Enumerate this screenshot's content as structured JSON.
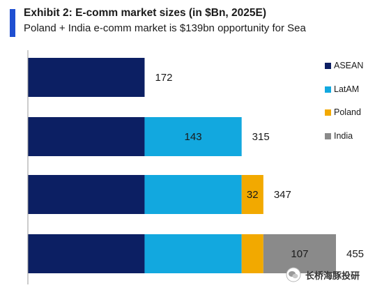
{
  "header": {
    "title": "Exhibit 2: E-comm market sizes (in $Bn, 2025E)",
    "subtitle": "Poland + India e-comm market is $139bn opportunity for Sea"
  },
  "colors": {
    "accent": "#1f4fd1",
    "ASEAN": "#0c1f63",
    "LatAM": "#12a8df",
    "Poland": "#f2a900",
    "India": "#8a8a8a",
    "axis": "#9a9a9a"
  },
  "chart_data": {
    "type": "bar",
    "orientation": "horizontal",
    "stacked": true,
    "title": "Exhibit 2: E-comm market sizes (in $Bn, 2025E)",
    "subtitle": "Poland + India e-comm market is $139bn opportunity for Sea",
    "xlabel": "",
    "ylabel": "",
    "xlim": [
      0,
      455
    ],
    "categories": [
      "",
      "",
      "",
      ""
    ],
    "series": [
      {
        "name": "ASEAN",
        "values": [
          172,
          172,
          172,
          172
        ]
      },
      {
        "name": "LatAM",
        "values": [
          0,
          143,
          143,
          143
        ]
      },
      {
        "name": "Poland",
        "values": [
          0,
          0,
          32,
          32
        ]
      },
      {
        "name": "India",
        "values": [
          0,
          0,
          0,
          107
        ]
      }
    ],
    "segment_labels": [
      {
        "row": 1,
        "series": "LatAM",
        "text": "143"
      },
      {
        "row": 2,
        "series": "Poland",
        "text": "32"
      },
      {
        "row": 3,
        "series": "India",
        "text": "107"
      }
    ],
    "totals": [
      "172",
      "315",
      "347",
      "455"
    ],
    "legend": {
      "position": "right",
      "entries": [
        "ASEAN",
        "LatAM",
        "Poland",
        "India"
      ]
    },
    "grid": false
  },
  "watermark": {
    "text": "长桥海豚投研"
  }
}
